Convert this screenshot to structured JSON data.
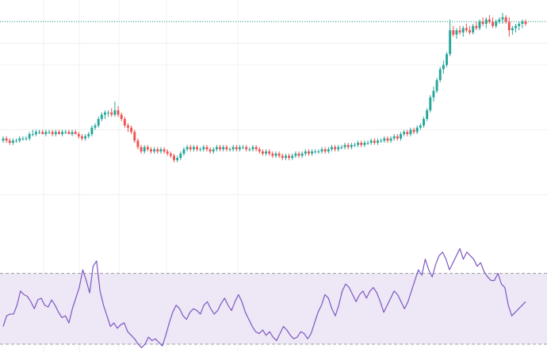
{
  "colors": {
    "up": "#26a69a",
    "down": "#ef5350",
    "rsi_line": "#7e57c2",
    "rsi_band_fill": "#ede7f6",
    "rsi_band_border": "#9e9e9e",
    "grid": "#f0f0f0",
    "last_price_line": "#26a69a",
    "background": "#ffffff"
  },
  "chart_data": [
    {
      "type": "candlestick",
      "title": "",
      "xlabel": "",
      "ylabel": "",
      "grid": true,
      "last_price_marker": 100,
      "ylim": [
        0,
        110
      ],
      "series": [
        {
          "ohlc": [
            [
              45,
              47,
              44,
              46
            ],
            [
              46,
              47,
              44,
              45
            ],
            [
              45,
              46,
              43,
              44
            ],
            [
              44,
              46,
              43,
              45
            ],
            [
              45,
              46,
              44,
              45
            ],
            [
              45,
              47,
              44,
              46
            ],
            [
              46,
              47,
              45,
              46
            ],
            [
              46,
              47,
              45,
              46
            ],
            [
              46,
              49,
              45,
              48
            ],
            [
              48,
              50,
              47,
              48
            ],
            [
              48,
              50,
              47,
              49
            ],
            [
              49,
              50,
              48,
              49
            ],
            [
              49,
              50,
              48,
              48
            ],
            [
              48,
              50,
              47,
              49
            ],
            [
              49,
              50,
              48,
              49
            ],
            [
              49,
              50,
              47,
              48
            ],
            [
              48,
              50,
              47,
              49
            ],
            [
              49,
              50,
              48,
              48
            ],
            [
              48,
              50,
              47,
              49
            ],
            [
              49,
              50,
              48,
              49
            ],
            [
              49,
              50,
              48,
              48
            ],
            [
              48,
              50,
              47,
              49
            ],
            [
              49,
              50,
              48,
              48
            ],
            [
              48,
              49,
              46,
              47
            ],
            [
              47,
              48,
              45,
              46
            ],
            [
              46,
              48,
              45,
              47
            ],
            [
              47,
              49,
              46,
              48
            ],
            [
              48,
              52,
              47,
              51
            ],
            [
              51,
              53,
              50,
              52
            ],
            [
              52,
              56,
              51,
              55
            ],
            [
              55,
              58,
              54,
              57
            ],
            [
              57,
              59,
              55,
              58
            ],
            [
              58,
              59,
              56,
              58
            ],
            [
              58,
              60,
              56,
              57
            ],
            [
              57,
              63,
              56,
              59
            ],
            [
              59,
              61,
              56,
              57
            ],
            [
              57,
              58,
              54,
              55
            ],
            [
              55,
              56,
              51,
              52
            ],
            [
              52,
              53,
              49,
              51
            ],
            [
              51,
              52,
              48,
              49
            ],
            [
              49,
              50,
              44,
              45
            ],
            [
              45,
              46,
              41,
              42
            ],
            [
              42,
              43,
              39,
              40
            ],
            [
              40,
              43,
              39,
              42
            ],
            [
              42,
              43,
              40,
              41
            ],
            [
              41,
              42,
              39,
              40
            ],
            [
              40,
              42,
              39,
              41
            ],
            [
              41,
              42,
              39,
              40
            ],
            [
              40,
              42,
              39,
              41
            ],
            [
              41,
              42,
              39,
              40
            ],
            [
              40,
              41,
              38,
              39
            ],
            [
              39,
              40,
              37,
              38
            ],
            [
              38,
              39,
              35,
              36
            ],
            [
              36,
              38,
              35,
              37
            ],
            [
              37,
              40,
              36,
              39
            ],
            [
              39,
              42,
              38,
              41
            ],
            [
              41,
              43,
              40,
              42
            ],
            [
              42,
              43,
              40,
              41
            ],
            [
              41,
              43,
              40,
              42
            ],
            [
              42,
              43,
              40,
              41
            ],
            [
              41,
              42,
              40,
              41
            ],
            [
              41,
              43,
              40,
              42
            ],
            [
              42,
              43,
              40,
              41
            ],
            [
              41,
              42,
              39,
              40
            ],
            [
              40,
              42,
              39,
              41
            ],
            [
              41,
              43,
              40,
              42
            ],
            [
              42,
              43,
              40,
              41
            ],
            [
              41,
              43,
              40,
              42
            ],
            [
              42,
              43,
              40,
              41
            ],
            [
              41,
              42,
              40,
              41
            ],
            [
              41,
              43,
              40,
              42
            ],
            [
              42,
              43,
              40,
              41
            ],
            [
              41,
              43,
              40,
              42
            ],
            [
              42,
              43,
              41,
              42
            ],
            [
              42,
              43,
              40,
              41
            ],
            [
              41,
              42,
              40,
              41
            ],
            [
              41,
              43,
              40,
              42
            ],
            [
              42,
              43,
              40,
              41
            ],
            [
              41,
              42,
              39,
              40
            ],
            [
              40,
              41,
              38,
              39
            ],
            [
              39,
              41,
              38,
              40
            ],
            [
              40,
              41,
              38,
              39
            ],
            [
              39,
              40,
              37,
              38
            ],
            [
              38,
              40,
              37,
              39
            ],
            [
              39,
              40,
              37,
              38
            ],
            [
              38,
              39,
              36,
              37
            ],
            [
              37,
              39,
              36,
              38
            ],
            [
              38,
              39,
              36,
              37
            ],
            [
              37,
              39,
              36,
              38
            ],
            [
              38,
              40,
              37,
              39
            ],
            [
              39,
              40,
              37,
              38
            ],
            [
              38,
              40,
              37,
              39
            ],
            [
              39,
              41,
              38,
              40
            ],
            [
              40,
              41,
              38,
              39
            ],
            [
              39,
              41,
              38,
              40
            ],
            [
              40,
              41,
              39,
              40
            ],
            [
              40,
              41,
              39,
              40
            ],
            [
              40,
              42,
              39,
              41
            ],
            [
              41,
              42,
              39,
              40
            ],
            [
              40,
              42,
              39,
              41
            ],
            [
              41,
              43,
              40,
              42
            ],
            [
              42,
              43,
              40,
              41
            ],
            [
              41,
              43,
              40,
              42
            ],
            [
              42,
              43,
              41,
              42
            ],
            [
              42,
              44,
              41,
              43
            ],
            [
              43,
              44,
              41,
              42
            ],
            [
              42,
              44,
              41,
              43
            ],
            [
              43,
              44,
              42,
              43
            ],
            [
              43,
              45,
              42,
              44
            ],
            [
              44,
              45,
              42,
              43
            ],
            [
              43,
              45,
              42,
              44
            ],
            [
              44,
              45,
              43,
              44
            ],
            [
              44,
              46,
              43,
              45
            ],
            [
              45,
              46,
              43,
              44
            ],
            [
              44,
              46,
              43,
              45
            ],
            [
              45,
              46,
              44,
              45
            ],
            [
              45,
              47,
              44,
              46
            ],
            [
              46,
              47,
              44,
              45
            ],
            [
              45,
              47,
              44,
              46
            ],
            [
              46,
              48,
              45,
              47
            ],
            [
              47,
              48,
              45,
              46
            ],
            [
              46,
              49,
              45,
              48
            ],
            [
              48,
              50,
              47,
              49
            ],
            [
              49,
              50,
              47,
              48
            ],
            [
              48,
              51,
              47,
              50
            ],
            [
              50,
              51,
              48,
              49
            ],
            [
              49,
              52,
              48,
              51
            ],
            [
              51,
              53,
              50,
              52
            ],
            [
              52,
              56,
              51,
              55
            ],
            [
              55,
              60,
              54,
              59
            ],
            [
              59,
              66,
              58,
              65
            ],
            [
              65,
              70,
              63,
              68
            ],
            [
              68,
              74,
              67,
              73
            ],
            [
              73,
              79,
              72,
              78
            ],
            [
              78,
              82,
              76,
              80
            ],
            [
              80,
              86,
              79,
              85
            ],
            [
              85,
              101,
              84,
              96
            ],
            [
              96,
              98,
              93,
              94
            ],
            [
              94,
              97,
              92,
              96
            ],
            [
              96,
              98,
              94,
              95
            ],
            [
              95,
              98,
              93,
              97
            ],
            [
              97,
              99,
              95,
              96
            ],
            [
              96,
              98,
              94,
              95
            ],
            [
              95,
              99,
              94,
              98
            ],
            [
              98,
              100,
              96,
              97
            ],
            [
              97,
              101,
              96,
              100
            ],
            [
              100,
              102,
              98,
              99
            ],
            [
              99,
              102,
              97,
              101
            ],
            [
              101,
              103,
              99,
              100
            ],
            [
              100,
              102,
              97,
              98
            ],
            [
              98,
              101,
              97,
              100
            ],
            [
              100,
              102,
              99,
              101
            ],
            [
              101,
              104,
              99,
              102
            ],
            [
              102,
              103,
              99,
              100
            ],
            [
              100,
              102,
              93,
              96
            ],
            [
              96,
              98,
              94,
              97
            ],
            [
              97,
              99,
              95,
              98
            ],
            [
              98,
              100,
              96,
              99
            ],
            [
              99,
              101,
              97,
              100
            ],
            [
              100,
              101,
              98,
              99
            ]
          ]
        }
      ]
    },
    {
      "type": "line",
      "title": "",
      "xlabel": "",
      "ylabel": "",
      "ylim": [
        25,
        90
      ],
      "band": [
        30,
        70
      ],
      "series": [
        {
          "values": [
            40,
            46,
            47,
            47,
            52,
            60,
            58,
            57,
            54,
            50,
            55,
            56,
            52,
            51,
            55,
            52,
            48,
            45,
            46,
            42,
            50,
            56,
            62,
            72,
            66,
            59,
            74,
            77,
            60,
            52,
            46,
            40,
            42,
            39,
            41,
            42,
            37,
            35,
            33,
            30,
            28,
            30,
            34,
            32,
            33,
            31,
            29,
            35,
            42,
            48,
            52,
            50,
            46,
            44,
            48,
            50,
            49,
            47,
            52,
            54,
            50,
            47,
            49,
            53,
            56,
            52,
            49,
            54,
            58,
            54,
            48,
            44,
            40,
            37,
            36,
            38,
            35,
            37,
            34,
            32,
            36,
            40,
            38,
            35,
            33,
            34,
            37,
            36,
            33,
            36,
            42,
            48,
            52,
            58,
            56,
            50,
            46,
            52,
            60,
            64,
            62,
            58,
            54,
            58,
            60,
            56,
            60,
            62,
            59,
            54,
            48,
            52,
            56,
            60,
            58,
            54,
            50,
            54,
            60,
            66,
            72,
            69,
            78,
            72,
            68,
            75,
            80,
            82,
            78,
            72,
            76,
            80,
            84,
            78,
            82,
            80,
            78,
            74,
            76,
            71,
            68,
            66,
            66,
            70,
            64,
            62,
            52,
            46,
            48,
            50,
            52,
            54
          ]
        }
      ]
    }
  ]
}
